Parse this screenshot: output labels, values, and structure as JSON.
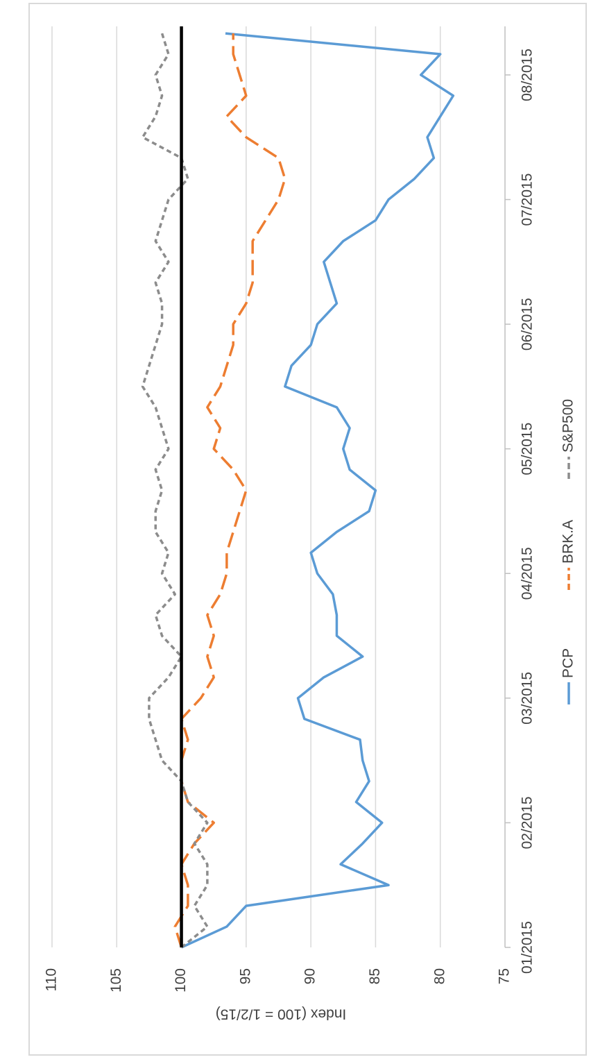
{
  "chart_data": {
    "type": "line",
    "rotated": true,
    "y_label": "Index (100 = 1/2/15)",
    "categories": [
      "01/2015",
      null,
      null,
      null,
      null,
      null,
      "02/2015",
      null,
      null,
      null,
      null,
      null,
      "03/2015",
      null,
      null,
      null,
      null,
      null,
      "04/2015",
      null,
      null,
      null,
      null,
      null,
      "05/2015",
      null,
      null,
      null,
      null,
      null,
      "06/2015",
      null,
      null,
      null,
      null,
      null,
      "07/2015",
      null,
      null,
      null,
      null,
      null,
      "08/2015",
      null,
      null
    ],
    "series": [
      {
        "name": "PCP",
        "color": "#5B9BD5",
        "dash": "none",
        "values": [
          100,
          96.5,
          95,
          84,
          87.7,
          86,
          84.5,
          86.5,
          85.5,
          86,
          86.2,
          90.5,
          91,
          89,
          86,
          88,
          88,
          88.3,
          89.5,
          90,
          88,
          85.5,
          85,
          87,
          87.5,
          87,
          88,
          92,
          91.5,
          90,
          89.5,
          88,
          88.5,
          89,
          87.5,
          85,
          84,
          82,
          80.5,
          81,
          80,
          79,
          81.5,
          80,
          96.6
        ]
      },
      {
        "name": "BRK.A",
        "color": "#ED7D31",
        "dash": "22,9",
        "values": [
          100,
          100.5,
          99.5,
          99.5,
          100,
          99,
          97.5,
          99.5,
          100,
          100,
          99.5,
          100,
          98.5,
          97.5,
          98,
          97.5,
          98,
          97,
          96.5,
          96.5,
          96,
          95.5,
          95,
          96,
          97.5,
          97,
          98,
          97,
          96.5,
          96,
          96,
          95,
          94.5,
          94.5,
          94.5,
          93.5,
          92.5,
          92,
          92.5,
          95,
          96.5,
          95,
          95.5,
          96,
          96
        ]
      },
      {
        "name": "S&P500",
        "color": "#8C8C8C",
        "dash": "7,5",
        "values": [
          100,
          98,
          99,
          98,
          98,
          99,
          98,
          99.5,
          100,
          101.5,
          102,
          102.5,
          102.5,
          101,
          100,
          101.5,
          102,
          100.5,
          101.5,
          101,
          102,
          102,
          101.5,
          102,
          101,
          101.5,
          102,
          103,
          102.5,
          102,
          101.5,
          101.5,
          102,
          101,
          102,
          101.5,
          101,
          99.5,
          100,
          103,
          102,
          101.5,
          102,
          101,
          101.5
        ]
      }
    ],
    "reference_line": 100,
    "ylim": [
      75,
      110
    ],
    "yticks": [
      75,
      80,
      85,
      90,
      95,
      100,
      105,
      110
    ],
    "grid": true
  }
}
